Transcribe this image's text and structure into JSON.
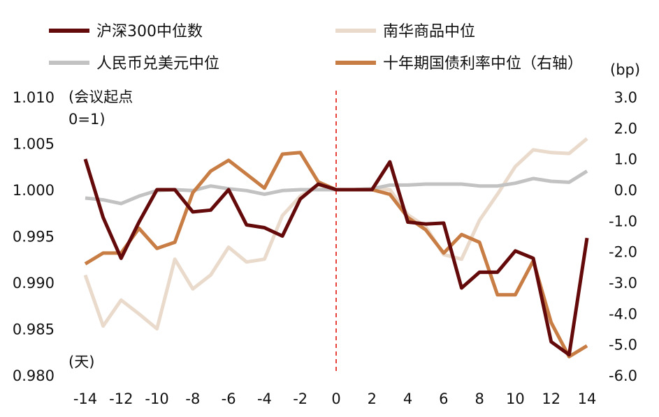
{
  "chart_data": {
    "type": "line",
    "title": "",
    "x": [
      -14,
      -13,
      -12,
      -11,
      -10,
      -9,
      -8,
      -7,
      -6,
      -5,
      -4,
      -3,
      -2,
      -1,
      0,
      1,
      2,
      3,
      4,
      5,
      6,
      7,
      8,
      9,
      10,
      11,
      12,
      13,
      14
    ],
    "xlim": [
      -14,
      14
    ],
    "xticks": [
      -14,
      -12,
      -10,
      -8,
      -6,
      -4,
      -2,
      0,
      2,
      4,
      6,
      8,
      10,
      12,
      14
    ],
    "xtick_labels": [
      "-14",
      "-12",
      "-10",
      "-8",
      "-6",
      "-4",
      "-2",
      "0",
      "2",
      "4",
      "6",
      "8",
      "10",
      "12",
      "14"
    ],
    "xlabel": "(天)",
    "ylabel_left": "(会议起点\n0=1)",
    "ylabel_left_lines": [
      "(会议起点",
      "0=1)"
    ],
    "ylim_left": [
      0.98,
      1.01
    ],
    "yticks_left": [
      0.98,
      0.985,
      0.99,
      0.995,
      1.0,
      1.005,
      1.01
    ],
    "ytick_labels_left": [
      "0.980",
      "0.985",
      "0.990",
      "0.995",
      "1.000",
      "1.005",
      "1.010"
    ],
    "ylabel_right": "(bp)",
    "ylim_right": [
      -6.0,
      3.0
    ],
    "yticks_right": [
      -6.0,
      -5.0,
      -4.0,
      -3.0,
      -2.0,
      -1.0,
      0.0,
      1.0,
      2.0,
      3.0
    ],
    "ytick_labels_right": [
      "-6.0",
      "-5.0",
      "-4.0",
      "-3.0",
      "-2.0",
      "-1.0",
      "0.0",
      "1.0",
      "2.0",
      "3.0"
    ],
    "grid": false,
    "vline": {
      "x": 0,
      "color": "#e8423c",
      "style": "dashed"
    },
    "legend_position": "top",
    "series": [
      {
        "name": "南华商品中位",
        "axis": "left",
        "color": "#e9dacb",
        "values": [
          0.9908,
          0.9853,
          0.9881,
          0.9866,
          0.985,
          0.9925,
          0.9893,
          0.9908,
          0.9938,
          0.9922,
          0.9925,
          0.9972,
          0.9993,
          1.0005,
          1.0,
          1.0,
          1.0001,
          1.0,
          0.9973,
          0.996,
          0.993,
          0.9925,
          0.9967,
          0.9995,
          1.0025,
          1.0043,
          1.004,
          1.0039,
          1.0055
        ]
      },
      {
        "name": "人民币兑美元中位",
        "axis": "left",
        "color": "#c2c2c2",
        "values": [
          0.9991,
          0.9989,
          0.9985,
          0.9993,
          0.9999,
          1.0,
          0.9999,
          1.0004,
          1.0001,
          0.9999,
          0.9995,
          0.9999,
          1.0,
          1.0,
          1.0,
          1.0,
          1.0001,
          1.0005,
          1.0005,
          1.0006,
          1.0006,
          1.0006,
          1.0004,
          1.0004,
          1.0007,
          1.0012,
          1.0009,
          1.0008,
          1.002
        ]
      },
      {
        "name": "十年期国债利率中位（右轴）",
        "axis": "right",
        "color": "#c87d45",
        "values": [
          -2.4,
          -2.05,
          -2.05,
          -1.25,
          -1.9,
          -1.7,
          -0.1,
          0.6,
          0.95,
          0.5,
          0.05,
          1.15,
          1.2,
          0.25,
          0.0,
          0.0,
          0.0,
          -0.15,
          -0.9,
          -1.3,
          -2.05,
          -1.45,
          -1.7,
          -3.4,
          -3.4,
          -2.3,
          -4.3,
          -5.4,
          -5.05
        ]
      },
      {
        "name": "沪深300中位数",
        "axis": "left",
        "color": "#640a0a",
        "values": [
          1.0033,
          0.997,
          0.9926,
          0.9965,
          1.0,
          1.0,
          0.9976,
          0.9978,
          1.0,
          0.9962,
          0.9959,
          0.995,
          0.999,
          1.0006,
          1.0,
          1.0,
          1.0,
          1.003,
          0.9965,
          0.9963,
          0.9964,
          0.9894,
          0.9911,
          0.9911,
          0.9934,
          0.9926,
          0.9836,
          0.9822,
          0.9948
        ]
      }
    ]
  },
  "legend": {
    "items": [
      {
        "label": "沪深300中位数",
        "color": "#640a0a"
      },
      {
        "label": "南华商品中位",
        "color": "#e9dacb"
      },
      {
        "label": "人民币兑美元中位",
        "color": "#c2c2c2"
      },
      {
        "label": "十年期国债利率中位（右轴）",
        "color": "#c87d45"
      }
    ]
  }
}
